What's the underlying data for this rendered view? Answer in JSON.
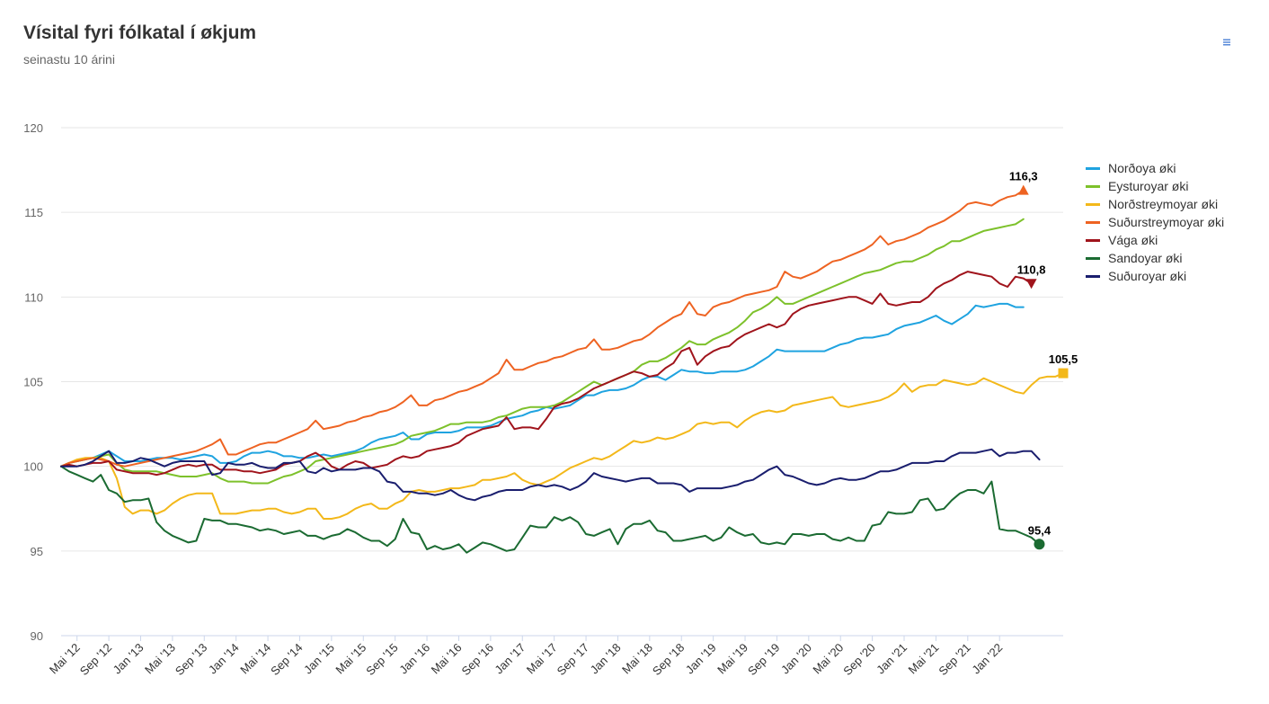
{
  "title": "Vísital fyri fólkatal í økjum",
  "subtitle": "seinastu 10 árini",
  "chart_data": {
    "type": "line",
    "title": "Vísital fyri fólkatal í økjum",
    "subtitle": "seinastu 10 árini",
    "ylim": [
      90,
      120
    ],
    "yticks": [
      90,
      95,
      100,
      105,
      110,
      115,
      120
    ],
    "xticks": [
      "Mai '12",
      "Sep '12",
      "Jan '13",
      "Mai '13",
      "Sep '13",
      "Jan '14",
      "Mai '14",
      "Sep '14",
      "Jan '15",
      "Mai '15",
      "Sep '15",
      "Jan '16",
      "Mai '16",
      "Sep '16",
      "Jan '17",
      "Mai '17",
      "Sep '17",
      "Jan '18",
      "Mai '18",
      "Sep '18",
      "Jan '19",
      "Mai '19",
      "Sep '19",
      "Jan '20",
      "Mai '20",
      "Sep '20",
      "Jan '21",
      "Mai '21",
      "Sep '21",
      "Jan '22"
    ],
    "x_start": "Mar '12",
    "x_end": "Feb '22",
    "grid": "horizontal",
    "legend_position": "right",
    "series": [
      {
        "name": "Norðoya øki",
        "color": "#1fa3e0",
        "values": [
          100,
          100.2,
          100.3,
          100.4,
          100.5,
          100.7,
          100.9,
          100.6,
          100.3,
          100.3,
          100.3,
          100.4,
          100.5,
          100.5,
          100.5,
          100.4,
          100.5,
          100.6,
          100.7,
          100.6,
          100.2,
          100.2,
          100.3,
          100.6,
          100.8,
          100.8,
          100.9,
          100.8,
          100.6,
          100.6,
          100.5,
          100.5,
          100.6,
          100.7,
          100.6,
          100.7,
          100.8,
          100.9,
          101.1,
          101.4,
          101.6,
          101.7,
          101.8,
          102,
          101.6,
          101.6,
          101.9,
          102,
          102,
          102,
          102.1,
          102.3,
          102.3,
          102.3,
          102.4,
          102.6,
          102.8,
          102.9,
          103,
          103.2,
          103.3,
          103.5,
          103.4,
          103.5,
          103.6,
          103.9,
          104.2,
          104.2,
          104.4,
          104.5,
          104.5,
          104.6,
          104.8,
          105.1,
          105.3,
          105.3,
          105.1,
          105.4,
          105.7,
          105.6,
          105.6,
          105.5,
          105.5,
          105.6,
          105.6,
          105.6,
          105.7,
          105.9,
          106.2,
          106.5,
          106.9,
          106.8,
          106.8,
          106.8,
          106.8,
          106.8,
          106.8,
          107,
          107.2,
          107.3,
          107.5,
          107.6,
          107.6,
          107.7,
          107.8,
          108.1,
          108.3,
          108.4,
          108.5,
          108.7,
          108.9,
          108.6,
          108.4,
          108.7,
          109,
          109.5,
          109.4,
          109.5,
          109.6,
          109.6,
          109.4,
          109.4
        ]
      },
      {
        "name": "Eysturoyar øki",
        "color": "#7dc12b",
        "values": [
          100,
          100.2,
          100.3,
          100.4,
          100.5,
          100.6,
          100.7,
          100.2,
          99.8,
          99.7,
          99.7,
          99.7,
          99.7,
          99.6,
          99.5,
          99.4,
          99.4,
          99.4,
          99.5,
          99.6,
          99.3,
          99.1,
          99.1,
          99.1,
          99,
          99,
          99,
          99.2,
          99.4,
          99.5,
          99.7,
          99.9,
          100.3,
          100.4,
          100.5,
          100.6,
          100.7,
          100.8,
          100.9,
          101,
          101.1,
          101.2,
          101.3,
          101.5,
          101.8,
          101.9,
          102,
          102.1,
          102.3,
          102.5,
          102.5,
          102.6,
          102.6,
          102.6,
          102.7,
          102.9,
          103,
          103.2,
          103.4,
          103.5,
          103.5,
          103.5,
          103.6,
          103.8,
          104.1,
          104.4,
          104.7,
          105,
          104.8,
          105,
          105.2,
          105.4,
          105.6,
          106,
          106.2,
          106.2,
          106.4,
          106.7,
          107,
          107.4,
          107.2,
          107.2,
          107.5,
          107.7,
          107.9,
          108.2,
          108.6,
          109.1,
          109.3,
          109.6,
          110,
          109.6,
          109.6,
          109.8,
          110,
          110.2,
          110.4,
          110.6,
          110.8,
          111,
          111.2,
          111.4,
          111.5,
          111.6,
          111.8,
          112,
          112.1,
          112.1,
          112.3,
          112.5,
          112.8,
          113,
          113.3,
          113.3,
          113.5,
          113.7,
          113.9,
          114,
          114.1,
          114.2,
          114.3,
          114.6
        ]
      },
      {
        "name": "Norðstreymoyar øki",
        "color": "#f3b81a",
        "values": [
          100,
          100.2,
          100.4,
          100.5,
          100.5,
          100.5,
          100.3,
          99.3,
          97.6,
          97.2,
          97.4,
          97.4,
          97.2,
          97.4,
          97.8,
          98.1,
          98.3,
          98.4,
          98.4,
          98.4,
          97.2,
          97.2,
          97.2,
          97.3,
          97.4,
          97.4,
          97.5,
          97.5,
          97.3,
          97.2,
          97.3,
          97.5,
          97.5,
          96.9,
          96.9,
          97,
          97.2,
          97.5,
          97.7,
          97.8,
          97.5,
          97.5,
          97.8,
          98,
          98.5,
          98.6,
          98.5,
          98.5,
          98.6,
          98.7,
          98.7,
          98.8,
          98.9,
          99.2,
          99.2,
          99.3,
          99.4,
          99.6,
          99.2,
          99,
          98.9,
          99.1,
          99.3,
          99.6,
          99.9,
          100.1,
          100.3,
          100.5,
          100.4,
          100.6,
          100.9,
          101.2,
          101.5,
          101.4,
          101.5,
          101.7,
          101.6,
          101.7,
          101.9,
          102.1,
          102.5,
          102.6,
          102.5,
          102.6,
          102.6,
          102.3,
          102.7,
          103,
          103.2,
          103.3,
          103.2,
          103.3,
          103.6,
          103.7,
          103.8,
          103.9,
          104,
          104.1,
          103.6,
          103.5,
          103.6,
          103.7,
          103.8,
          103.9,
          104.1,
          104.4,
          104.9,
          104.4,
          104.7,
          104.8,
          104.8,
          105.1,
          105,
          104.9,
          104.8,
          104.9,
          105.2,
          105,
          104.8,
          104.6,
          104.4,
          104.3,
          104.8,
          105.2,
          105.3,
          105.3,
          105.5
        ]
      },
      {
        "name": "Suðurstreymoyar øki",
        "color": "#ee6322",
        "values": [
          100,
          100.2,
          100.3,
          100.4,
          100.5,
          100.4,
          100.3,
          100.1,
          100,
          100.1,
          100.2,
          100.3,
          100.4,
          100.5,
          100.6,
          100.7,
          100.8,
          100.9,
          101.1,
          101.3,
          101.6,
          100.7,
          100.7,
          100.9,
          101.1,
          101.3,
          101.4,
          101.4,
          101.6,
          101.8,
          102,
          102.2,
          102.7,
          102.2,
          102.3,
          102.4,
          102.6,
          102.7,
          102.9,
          103,
          103.2,
          103.3,
          103.5,
          103.8,
          104.2,
          103.6,
          103.6,
          103.9,
          104,
          104.2,
          104.4,
          104.5,
          104.7,
          104.9,
          105.2,
          105.5,
          106.3,
          105.7,
          105.7,
          105.9,
          106.1,
          106.2,
          106.4,
          106.5,
          106.7,
          106.9,
          107,
          107.5,
          106.9,
          106.9,
          107,
          107.2,
          107.4,
          107.5,
          107.8,
          108.2,
          108.5,
          108.8,
          109,
          109.7,
          109,
          108.9,
          109.4,
          109.6,
          109.7,
          109.9,
          110.1,
          110.2,
          110.3,
          110.4,
          110.6,
          111.5,
          111.2,
          111.1,
          111.3,
          111.5,
          111.8,
          112.1,
          112.2,
          112.4,
          112.6,
          112.8,
          113.1,
          113.6,
          113.1,
          113.3,
          113.4,
          113.6,
          113.8,
          114.1,
          114.3,
          114.5,
          114.8,
          115.1,
          115.5,
          115.6,
          115.5,
          115.4,
          115.7,
          115.9,
          116,
          116.3
        ]
      },
      {
        "name": "Vága øki",
        "color": "#a0141c",
        "values": [
          100,
          100.1,
          100,
          100.1,
          100.2,
          100.2,
          100.3,
          99.8,
          99.7,
          99.6,
          99.6,
          99.6,
          99.5,
          99.6,
          99.8,
          100,
          100.1,
          100,
          100.1,
          100.1,
          99.8,
          99.8,
          99.8,
          99.7,
          99.7,
          99.6,
          99.7,
          99.8,
          100.1,
          100.2,
          100.3,
          100.6,
          100.8,
          100.5,
          100,
          99.8,
          100.1,
          100.3,
          100.2,
          99.9,
          100,
          100.1,
          100.4,
          100.6,
          100.5,
          100.6,
          100.9,
          101,
          101.1,
          101.2,
          101.4,
          101.8,
          102,
          102.2,
          102.3,
          102.4,
          102.9,
          102.2,
          102.3,
          102.3,
          102.2,
          102.8,
          103.5,
          103.7,
          103.8,
          104,
          104.3,
          104.6,
          104.8,
          105,
          105.2,
          105.4,
          105.6,
          105.5,
          105.3,
          105.4,
          105.8,
          106.1,
          106.8,
          107,
          106,
          106.5,
          106.8,
          107,
          107.1,
          107.5,
          107.8,
          108,
          108.2,
          108.4,
          108.2,
          108.4,
          109,
          109.3,
          109.5,
          109.6,
          109.7,
          109.8,
          109.9,
          110,
          110,
          109.8,
          109.6,
          110.2,
          109.6,
          109.5,
          109.6,
          109.7,
          109.7,
          110,
          110.5,
          110.8,
          111,
          111.3,
          111.5,
          111.4,
          111.3,
          111.2,
          110.8,
          110.6,
          111.2,
          111.1,
          110.8
        ]
      },
      {
        "name": "Sandoyar øki",
        "color": "#1b6b32",
        "values": [
          100,
          99.7,
          99.5,
          99.3,
          99.1,
          99.5,
          98.6,
          98.4,
          97.9,
          98,
          98,
          98.1,
          96.7,
          96.2,
          95.9,
          95.7,
          95.5,
          95.6,
          96.9,
          96.8,
          96.8,
          96.6,
          96.6,
          96.5,
          96.4,
          96.2,
          96.3,
          96.2,
          96,
          96.1,
          96.2,
          95.9,
          95.9,
          95.7,
          95.9,
          96,
          96.3,
          96.1,
          95.8,
          95.6,
          95.6,
          95.3,
          95.7,
          96.9,
          96.1,
          96,
          95.1,
          95.3,
          95.1,
          95.2,
          95.4,
          94.9,
          95.2,
          95.5,
          95.4,
          95.2,
          95,
          95.1,
          95.8,
          96.5,
          96.4,
          96.4,
          97,
          96.8,
          97,
          96.7,
          96,
          95.9,
          96.1,
          96.3,
          95.4,
          96.3,
          96.6,
          96.6,
          96.8,
          96.2,
          96.1,
          95.6,
          95.6,
          95.7,
          95.8,
          95.9,
          95.6,
          95.8,
          96.4,
          96.1,
          95.9,
          96,
          95.5,
          95.4,
          95.5,
          95.4,
          96,
          96,
          95.9,
          96,
          96,
          95.7,
          95.6,
          95.8,
          95.6,
          95.6,
          96.5,
          96.6,
          97.3,
          97.2,
          97.2,
          97.3,
          98,
          98.1,
          97.4,
          97.5,
          98,
          98.4,
          98.6,
          98.6,
          98.4,
          99.1,
          96.3,
          96.2,
          96.2,
          96,
          95.8,
          95.4
        ]
      },
      {
        "name": "Suðuroyar øki",
        "color": "#1a1e6e",
        "values": [
          100,
          100,
          100,
          100.1,
          100.3,
          100.6,
          100.9,
          100.2,
          100.2,
          100.3,
          100.5,
          100.4,
          100.2,
          100,
          100.2,
          100.3,
          100.3,
          100.3,
          100.3,
          99.5,
          99.6,
          100.2,
          100.1,
          100.1,
          100.2,
          100,
          99.9,
          99.9,
          100.2,
          100.2,
          100.3,
          99.7,
          99.6,
          99.9,
          99.7,
          99.8,
          99.8,
          99.8,
          99.9,
          99.9,
          99.7,
          99.1,
          99,
          98.5,
          98.5,
          98.4,
          98.4,
          98.3,
          98.4,
          98.6,
          98.3,
          98.1,
          98,
          98.2,
          98.3,
          98.5,
          98.6,
          98.6,
          98.6,
          98.8,
          98.9,
          98.8,
          98.9,
          98.8,
          98.6,
          98.8,
          99.1,
          99.6,
          99.4,
          99.3,
          99.2,
          99.1,
          99.2,
          99.3,
          99.3,
          99,
          99,
          99,
          98.9,
          98.5,
          98.7,
          98.7,
          98.7,
          98.7,
          98.8,
          98.9,
          99.1,
          99.2,
          99.5,
          99.8,
          100,
          99.5,
          99.4,
          99.2,
          99,
          98.9,
          99,
          99.2,
          99.3,
          99.2,
          99.2,
          99.3,
          99.5,
          99.7,
          99.7,
          99.8,
          100,
          100.2,
          100.2,
          100.2,
          100.3,
          100.3,
          100.6,
          100.8,
          100.8,
          100.8,
          100.9,
          101,
          100.6,
          100.8,
          100.8,
          100.9,
          100.9,
          100.4
        ]
      }
    ],
    "end_labels": [
      {
        "series": "Suðurstreymoyar øki",
        "label": "116,3",
        "marker": "triangle-up"
      },
      {
        "series": "Vága øki",
        "label": "110,8",
        "marker": "triangle-down"
      },
      {
        "series": "Norðstreymoyar øki",
        "label": "105,5",
        "marker": "square"
      },
      {
        "series": "Sandoyar øki",
        "label": "95,4",
        "marker": "circle"
      }
    ]
  }
}
